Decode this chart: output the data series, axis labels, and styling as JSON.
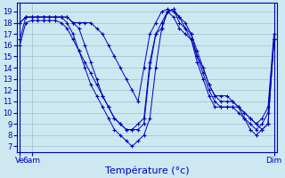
{
  "bg_color": "#cde8f0",
  "grid_color": "#a0c0d0",
  "line_color": "#0000bb",
  "marker_color": "#0000bb",
  "xlabel": "Température (°c)",
  "xlabel_color": "#0000bb",
  "xtick_labels": [
    "Ve",
    "6am",
    "Dim"
  ],
  "ytick_min": 7,
  "ytick_max": 19,
  "ylim": [
    6.5,
    19.8
  ],
  "xlim": [
    -0.5,
    43.5
  ],
  "series": [
    [
      16.0,
      18.0,
      18.2,
      18.2,
      18.2,
      18.2,
      18.2,
      18.0,
      17.5,
      16.5,
      15.5,
      14.5,
      13.5,
      12.5,
      11.5,
      10.5,
      9.5,
      9.0,
      8.5,
      8.5,
      8.5,
      9.0,
      14.0,
      17.0,
      17.5,
      19.0,
      18.5,
      17.5,
      17.0,
      16.5,
      14.5,
      13.0,
      11.5,
      10.5,
      10.5,
      10.5,
      10.5,
      10.5,
      10.0,
      9.5,
      9.0,
      8.5,
      9.0,
      16.5
    ],
    [
      16.5,
      18.5,
      18.5,
      18.5,
      18.5,
      18.5,
      18.5,
      18.5,
      18.0,
      17.0,
      15.5,
      14.0,
      12.5,
      11.5,
      10.5,
      9.5,
      8.5,
      8.0,
      7.5,
      7.0,
      7.5,
      8.0,
      9.5,
      14.0,
      17.5,
      19.0,
      19.2,
      18.0,
      17.5,
      17.0,
      15.0,
      13.5,
      12.0,
      11.0,
      10.5,
      10.5,
      10.5,
      10.0,
      9.5,
      8.5,
      8.0,
      8.5,
      9.0,
      16.5
    ],
    [
      18.0,
      18.5,
      18.5,
      18.5,
      18.5,
      18.5,
      18.5,
      18.5,
      18.5,
      18.0,
      17.5,
      16.0,
      14.5,
      13.0,
      11.5,
      10.5,
      9.5,
      9.0,
      8.5,
      8.5,
      9.0,
      9.5,
      14.5,
      17.0,
      18.0,
      19.0,
      19.2,
      18.5,
      17.5,
      16.5,
      15.0,
      14.0,
      12.5,
      11.5,
      11.0,
      11.0,
      11.0,
      10.5,
      9.5,
      9.0,
      8.5,
      9.0,
      10.0,
      16.5
    ],
    [
      18.0,
      18.5,
      18.5,
      18.5,
      18.5,
      18.5,
      18.5,
      18.5,
      18.5,
      18.0,
      18.0,
      18.0,
      18.0,
      17.5,
      17.0,
      16.0,
      15.0,
      14.0,
      13.0,
      12.0,
      11.0,
      14.0,
      17.0,
      18.0,
      19.0,
      19.2,
      19.0,
      18.5,
      18.0,
      17.0,
      15.5,
      14.0,
      12.5,
      11.5,
      11.5,
      11.5,
      11.0,
      10.5,
      10.0,
      9.5,
      9.0,
      9.5,
      10.5,
      17.0
    ]
  ],
  "x_ve": 0,
  "x_6am": 2,
  "x_dim": 43
}
